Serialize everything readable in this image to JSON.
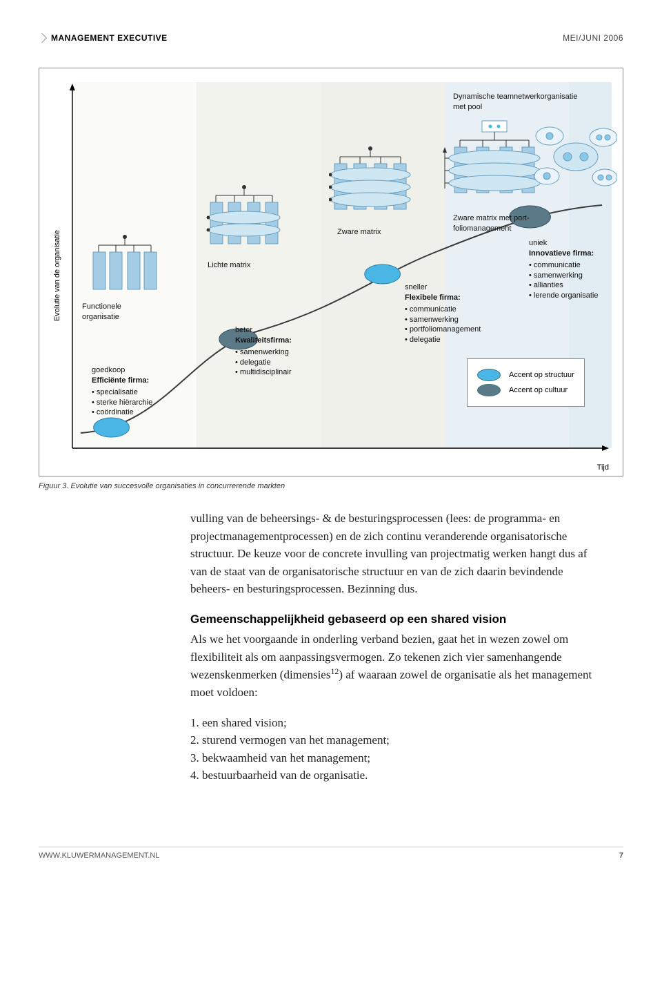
{
  "header": {
    "publication": "MANAGEMENT EXECUTIVE",
    "date": "MEI/JUNI 2006"
  },
  "figure": {
    "y_axis": "Evolutie van de organisatie",
    "x_axis": "Tijd",
    "stages": {
      "s1": {
        "icon_label": "Functionele\norganisatie",
        "desc_lead": "goedkoop",
        "desc_title": "Efficiënte firma:",
        "desc_items": [
          "specialisatie",
          "sterke hiërarchie",
          "coördinatie"
        ]
      },
      "s2": {
        "icon_label": "Lichte matrix",
        "desc_lead": "beter",
        "desc_title": "Kwaliteitsfirma:",
        "desc_items": [
          "samenwerking",
          "delegatie",
          "multidisciplinair"
        ]
      },
      "s3": {
        "icon_label": "Zware matrix",
        "desc_lead": "sneller",
        "desc_title": "Flexibele firma:",
        "desc_items": [
          "communicatie",
          "samenwerking",
          "portfoliomanagement",
          "delegatie"
        ]
      },
      "s4": {
        "icon_label": "Zware matrix met port-\nfoliomanagement",
        "desc_lead": "uniek",
        "desc_title": "Innovatieve firma:",
        "desc_items": [
          "communicatie",
          "samenwerking",
          "allianties",
          "lerende organisatie"
        ]
      },
      "s5": {
        "icon_label": "Dynamische teamnetwerkorganisatie\nmet pool"
      }
    },
    "legend": {
      "structuur": "Accent op structuur",
      "cultuur": "Accent op cultuur"
    },
    "caption": "Figuur 3. Evolutie van succesvolle organisaties in concurrerende markten",
    "colors": {
      "bar": "#a5cde6",
      "bar_stroke": "#6aa0bf",
      "node_struct": "#49b6e6",
      "node_cult": "#5b7a88",
      "curve": "#444",
      "axis": "#000",
      "band_a": "#fafaf7",
      "band_b": "#f2f3ec",
      "band_c": "#eef0e9",
      "band_d": "#e8eff5",
      "band_e": "#e2ecf3"
    }
  },
  "body": {
    "para1": "vulling van de beheersings- & de besturingsprocessen (lees: de programma- en projectmanagementprocessen) en de zich continu veranderende organisatorische structuur. De keuze voor de concrete invulling van projectmatig werken hangt dus af van de staat van de organisatorische structuur en van de zich daarin bevindende beheers- en besturingsprocessen. Bezinning dus.",
    "heading": "Gemeenschappelijkheid gebaseerd op een shared vision",
    "para2a": "Als we het voorgaande in onderling verband bezien, gaat het in wezen zowel om flexibiliteit als om aanpassingsvermogen. Zo tekenen zich vier samenhangende wezenskenmerken (dimensies",
    "para2_sup": "12",
    "para2b": ") af waaraan zowel de organisatie als het management moet voldoen:",
    "list": [
      "1. een shared vision;",
      "2. sturend vermogen van het management;",
      "3. bekwaamheid van het management;",
      "4. bestuurbaarheid van de organisatie."
    ]
  },
  "footer": {
    "url": "WWW.KLUWERMANAGEMENT.NL",
    "page": "7"
  }
}
